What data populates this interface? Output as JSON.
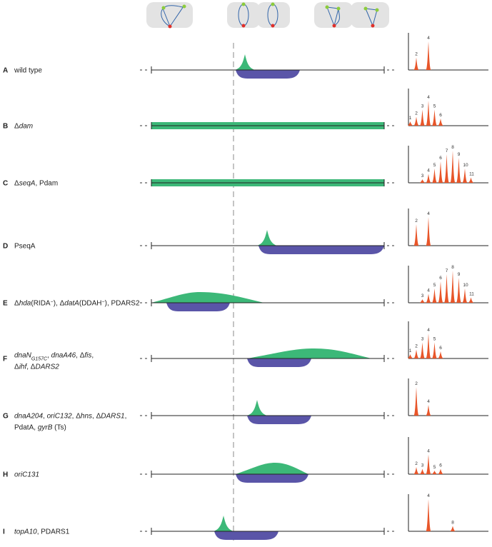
{
  "panels": [
    {
      "letter": "A",
      "label": [
        [
          {
            "t": "wild type"
          }
        ]
      ],
      "peaks": [
        {
          "n": 2,
          "height": 35
        },
        {
          "n": 4,
          "height": 80
        }
      ]
    },
    {
      "letter": "B",
      "label": [
        [
          {
            "t": "Δ"
          },
          {
            "t": "dam",
            "i": true
          }
        ]
      ],
      "peaks": [
        {
          "n": 1,
          "height": 12
        },
        {
          "n": 2,
          "height": 25
        },
        {
          "n": 3,
          "height": 45
        },
        {
          "n": 4,
          "height": 70
        },
        {
          "n": 5,
          "height": 45
        },
        {
          "n": 6,
          "height": 20
        }
      ]
    },
    {
      "letter": "C",
      "label": [
        [
          {
            "t": "Δ"
          },
          {
            "t": "seqA",
            "i": true
          },
          {
            "t": ", Pdam"
          }
        ]
      ],
      "peaks": [
        {
          "n": 3,
          "height": 10
        },
        {
          "n": 4,
          "height": 25
        },
        {
          "n": 5,
          "height": 40
        },
        {
          "n": 6,
          "height": 60
        },
        {
          "n": 7,
          "height": 80
        },
        {
          "n": 8,
          "height": 90
        },
        {
          "n": 9,
          "height": 70
        },
        {
          "n": 10,
          "height": 40
        },
        {
          "n": 11,
          "height": 15
        }
      ]
    },
    {
      "letter": "D",
      "label": [
        [
          {
            "t": "PseqA"
          }
        ]
      ],
      "peaks": [
        {
          "n": 2,
          "height": 60
        },
        {
          "n": 4,
          "height": 80
        }
      ]
    },
    {
      "letter": "E",
      "label": [
        [
          {
            "t": "Δ"
          },
          {
            "t": "hda",
            "i": true
          },
          {
            "t": "(RIDA"
          },
          {
            "t": "−",
            "sup": true
          },
          {
            "t": "), Δ"
          },
          {
            "t": "datA",
            "i": true
          },
          {
            "t": "(DDAH"
          },
          {
            "t": "−",
            "sup": true
          },
          {
            "t": "), PDARS2"
          }
        ]
      ],
      "peaks": [
        {
          "n": 3,
          "height": 10
        },
        {
          "n": 4,
          "height": 25
        },
        {
          "n": 5,
          "height": 40
        },
        {
          "n": 6,
          "height": 60
        },
        {
          "n": 7,
          "height": 80
        },
        {
          "n": 8,
          "height": 90
        },
        {
          "n": 9,
          "height": 70
        },
        {
          "n": 10,
          "height": 40
        },
        {
          "n": 11,
          "height": 15
        }
      ]
    },
    {
      "letter": "F",
      "label": [
        [
          {
            "t": "dnaN",
            "i": true
          },
          {
            "t": "G157C",
            "i": true,
            "sub": true
          },
          {
            "t": ", "
          },
          {
            "t": "dnaA46",
            "i": true
          },
          {
            "t": ", Δ"
          },
          {
            "t": "fis",
            "i": true
          },
          {
            "t": ","
          }
        ],
        [
          {
            "t": "Δ"
          },
          {
            "t": "ihf",
            "i": true
          },
          {
            "t": ", Δ"
          },
          {
            "t": "DARS2",
            "i": true
          }
        ]
      ],
      "peaks": [
        {
          "n": 1,
          "height": 12
        },
        {
          "n": 2,
          "height": 25
        },
        {
          "n": 3,
          "height": 45
        },
        {
          "n": 4,
          "height": 70
        },
        {
          "n": 5,
          "height": 45
        },
        {
          "n": 6,
          "height": 20
        }
      ]
    },
    {
      "letter": "G",
      "label": [
        [
          {
            "t": "dnaA204",
            "i": true
          },
          {
            "t": ", "
          },
          {
            "t": "oriC132",
            "i": true
          },
          {
            "t": ", Δ"
          },
          {
            "t": "hns",
            "i": true
          },
          {
            "t": ", Δ"
          },
          {
            "t": "DARS1",
            "i": true
          },
          {
            "t": ","
          }
        ],
        [
          {
            "t": "PdatA, "
          },
          {
            "t": "gyrB",
            "i": true
          },
          {
            "t": " (Ts)"
          }
        ]
      ],
      "peaks": [
        {
          "n": 2,
          "height": 80
        },
        {
          "n": 4,
          "height": 30
        }
      ]
    },
    {
      "letter": "H",
      "label": [
        [
          {
            "t": "oriC131",
            "i": true
          }
        ]
      ],
      "peaks": [
        {
          "n": 2,
          "height": 20
        },
        {
          "n": 3,
          "height": 15
        },
        {
          "n": 4,
          "height": 55
        },
        {
          "n": 5,
          "height": 10
        },
        {
          "n": 6,
          "height": 15
        }
      ]
    },
    {
      "letter": "I",
      "label": [
        [
          {
            "t": "topA10",
            "i": true
          },
          {
            "t": ", PDARS1"
          }
        ]
      ],
      "peaks": [
        {
          "n": 4,
          "height": 90
        },
        {
          "n": 8,
          "height": 15
        }
      ]
    }
  ]
}
